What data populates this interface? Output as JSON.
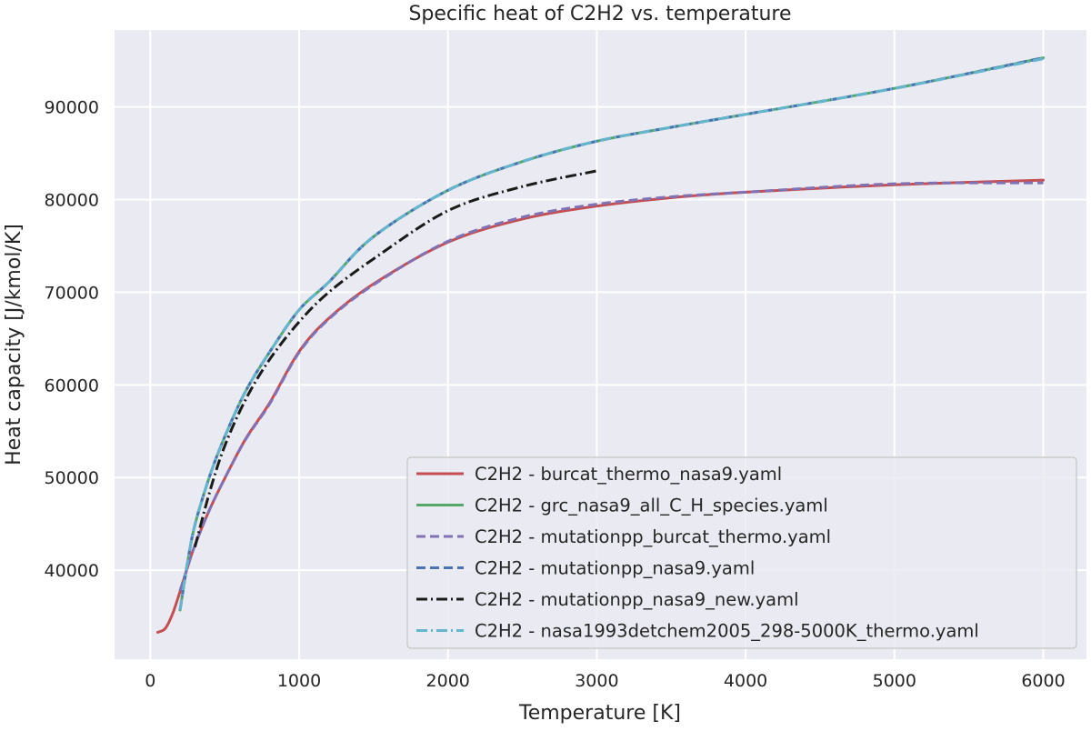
{
  "chart_data": {
    "type": "line",
    "title": "Specific heat of C2H2 vs. temperature",
    "xlabel": "Temperature [K]",
    "ylabel": "Heat capacity [J/kmol/K]",
    "xlim": [
      -240,
      6290
    ],
    "ylim": [
      30400,
      98300
    ],
    "xticks": [
      0,
      1000,
      2000,
      3000,
      4000,
      5000,
      6000
    ],
    "yticks": [
      40000,
      50000,
      60000,
      70000,
      80000,
      90000
    ],
    "grid": true,
    "background": "#eaeaf2",
    "legend_position": "lower-right",
    "series": [
      {
        "name": "C2H2 - burcat_thermo_nasa9.yaml",
        "color": "#c44e52",
        "style": "solid",
        "x": [
          50,
          100,
          150,
          200,
          250,
          300,
          400,
          500,
          640,
          800,
          1000,
          1200,
          1500,
          2000,
          2500,
          3000,
          3500,
          4000,
          5000,
          6000
        ],
        "y": [
          33300,
          33700,
          35300,
          37700,
          40300,
          42700,
          46600,
          49900,
          54150,
          58000,
          63600,
          67200,
          70900,
          75400,
          77900,
          79300,
          80200,
          80800,
          81600,
          82100
        ]
      },
      {
        "name": "C2H2 - grc_nasa9_all_C_H_species.yaml",
        "color": "#55a868",
        "style": "solid",
        "x": [
          200,
          250,
          300,
          400,
          500,
          640,
          800,
          1000,
          1200,
          1500,
          2000,
          2500,
          3000,
          3500,
          4000,
          5000,
          6000
        ],
        "y": [
          35700,
          40800,
          44900,
          50200,
          54400,
          59300,
          63500,
          68100,
          71100,
          76000,
          81000,
          84100,
          86300,
          87800,
          89200,
          92000,
          95300
        ]
      },
      {
        "name": "C2H2 - mutationpp_burcat_thermo.yaml",
        "color": "#8172b3",
        "style": "dashed",
        "x": [
          200,
          250,
          300,
          400,
          500,
          640,
          800,
          1000,
          1200,
          1500,
          2000,
          2500,
          3000,
          3500,
          4000,
          5000,
          6000
        ],
        "y": [
          37800,
          40300,
          42700,
          46600,
          49900,
          54100,
          57900,
          63500,
          67100,
          70800,
          75500,
          78100,
          79500,
          80300,
          80800,
          81700,
          81800
        ]
      },
      {
        "name": "C2H2 - mutationpp_nasa9.yaml",
        "color": "#4c72b0",
        "style": "dashed",
        "x": [
          200,
          250,
          300,
          400,
          500,
          640,
          800,
          1000,
          1200,
          1500,
          2000,
          2500,
          3000,
          3500,
          4000,
          5000,
          6000
        ],
        "y": [
          35700,
          40800,
          44900,
          50200,
          54400,
          59300,
          63500,
          68100,
          71100,
          76000,
          81000,
          84100,
          86300,
          87800,
          89200,
          92000,
          95300
        ]
      },
      {
        "name": "C2H2 - mutationpp_nasa9_new.yaml",
        "color": "#1a1a1a",
        "style": "dashdot",
        "x": [
          300,
          400,
          500,
          640,
          800,
          1000,
          1200,
          1500,
          2000,
          2500,
          3000
        ],
        "y": [
          42500,
          48500,
          53400,
          58400,
          62700,
          66800,
          70000,
          73600,
          78800,
          81400,
          83100
        ]
      },
      {
        "name": "C2H2 - nasa1993detchem2005_298-5000K_thermo.yaml",
        "color": "#64b5cd",
        "style": "dashdot",
        "x": [
          200,
          250,
          300,
          400,
          500,
          640,
          800,
          1000,
          1200,
          1500,
          2000,
          2500,
          3000,
          3500,
          4000,
          5000,
          6000
        ],
        "y": [
          35700,
          40800,
          44900,
          50200,
          54400,
          59300,
          63500,
          68100,
          71100,
          76000,
          81000,
          84100,
          86300,
          87800,
          89200,
          92000,
          95200
        ]
      }
    ]
  }
}
